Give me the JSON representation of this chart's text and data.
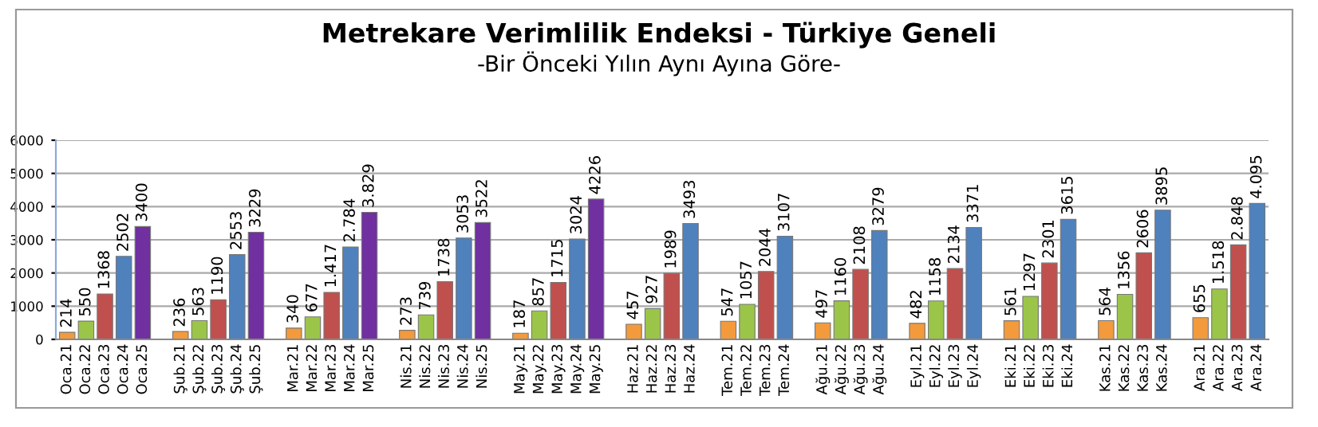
{
  "chart_data": {
    "type": "bar",
    "title": "Metrekare Verimlilik Endeksi - Türkiye Geneli",
    "subtitle": "-Bir Önceki Yılın Aynı Ayına Göre-",
    "categories": [
      "Oca.21",
      "Oca.22",
      "Oca.23",
      "Oca.24",
      "Oca.25",
      null,
      "Şub.21",
      "Şub.22",
      "Şub.23",
      "Şub.24",
      "Şub.25",
      null,
      "Mar.21",
      "Mar.22",
      "Mar.23",
      "Mar.24",
      "Mar.25",
      null,
      "Nis.21",
      "Nis.22",
      "Nis.23",
      "Nis.24",
      "Nis.25",
      null,
      "May.21",
      "May.22",
      "May.23",
      "May.24",
      "May.25",
      null,
      "Haz.21",
      "Haz.22",
      "Haz.23",
      "Haz.24",
      null,
      "Tem.21",
      "Tem.22",
      "Tem.23",
      "Tem.24",
      null,
      "Ağu.21",
      "Ağu.22",
      "Ağu.23",
      "Ağu.24",
      null,
      "Eyl.21",
      "Eyl.22",
      "Eyl.23",
      "Eyl.24",
      null,
      "Eki.21",
      "Eki.22",
      "Eki.23",
      "Eki.24",
      null,
      "Kas.21",
      "Kas.22",
      "Kas.23",
      "Kas.24",
      null,
      "Ara.21",
      "Ara.22",
      "Ara.23",
      "Ara.24"
    ],
    "values": [
      214,
      550,
      1368,
      2502,
      3400,
      null,
      236,
      563,
      1190,
      2553,
      3229,
      null,
      340,
      677,
      1417,
      2784,
      3829,
      null,
      273,
      739,
      1738,
      3053,
      3522,
      null,
      187,
      857,
      1715,
      3024,
      4226,
      null,
      457,
      927,
      1989,
      3493,
      null,
      547,
      1057,
      2044,
      3107,
      null,
      497,
      1160,
      2108,
      3279,
      null,
      482,
      1158,
      2134,
      3371,
      null,
      561,
      1297,
      2301,
      3615,
      null,
      564,
      1356,
      2606,
      3895,
      null,
      655,
      1518,
      2848,
      4095
    ],
    "value_labels": [
      "214",
      "550",
      "1368",
      "2502",
      "3400",
      null,
      "236",
      "563",
      "1190",
      "2553",
      "3229",
      null,
      "340",
      "677",
      "1.417",
      "2.784",
      "3.829",
      null,
      "273",
      "739",
      "1738",
      "3053",
      "3522",
      null,
      "187",
      "857",
      "1715",
      "3024",
      "4226",
      null,
      "457",
      "927",
      "1989",
      "3493",
      null,
      "547",
      "1057",
      "2044",
      "3107",
      null,
      "497",
      "1160",
      "2108",
      "3279",
      null,
      "482",
      "1158",
      "2134",
      "3371",
      null,
      "561",
      "1297",
      "2301",
      "3615",
      null,
      "564",
      "1356",
      "2606",
      "3895",
      null,
      "655",
      "1.518",
      "2.848",
      "4.095"
    ],
    "colors": [
      "#f39a3c",
      "#9bc548",
      "#c0504d",
      "#4f81bd",
      "#7030a0",
      null,
      "#f39a3c",
      "#9bc548",
      "#c0504d",
      "#4f81bd",
      "#7030a0",
      null,
      "#f39a3c",
      "#9bc548",
      "#c0504d",
      "#4f81bd",
      "#7030a0",
      null,
      "#f39a3c",
      "#9bc548",
      "#c0504d",
      "#4f81bd",
      "#7030a0",
      null,
      "#f39a3c",
      "#9bc548",
      "#c0504d",
      "#4f81bd",
      "#7030a0",
      null,
      "#f39a3c",
      "#9bc548",
      "#c0504d",
      "#4f81bd",
      null,
      "#f39a3c",
      "#9bc548",
      "#c0504d",
      "#4f81bd",
      null,
      "#f39a3c",
      "#9bc548",
      "#c0504d",
      "#4f81bd",
      null,
      "#f39a3c",
      "#9bc548",
      "#c0504d",
      "#4f81bd",
      null,
      "#f39a3c",
      "#9bc548",
      "#c0504d",
      "#4f81bd",
      null,
      "#f39a3c",
      "#9bc548",
      "#c0504d",
      "#4f81bd",
      null,
      "#f39a3c",
      "#9bc548",
      "#c0504d",
      "#4f81bd"
    ],
    "ylim": [
      0,
      6000
    ],
    "yticks": [
      0,
      1000,
      2000,
      3000,
      4000,
      5000,
      6000
    ],
    "grid": "y"
  }
}
